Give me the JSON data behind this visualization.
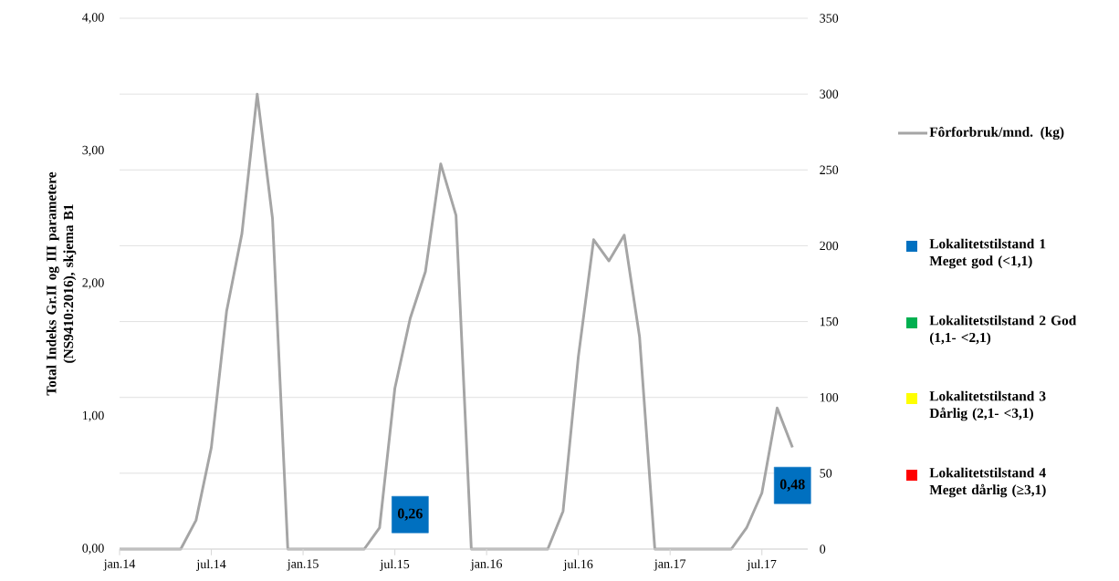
{
  "chart_data": {
    "type": "line",
    "ylabel": "Total Indeks Gr.II og III parametere (NS9410:2016), skjema B1",
    "x": [
      "2014-01",
      "2014-02",
      "2014-03",
      "2014-04",
      "2014-05",
      "2014-06",
      "2014-07",
      "2014-08",
      "2014-09",
      "2014-10",
      "2014-11",
      "2014-12",
      "2015-01",
      "2015-02",
      "2015-03",
      "2015-04",
      "2015-05",
      "2015-06",
      "2015-07",
      "2015-08",
      "2015-09",
      "2015-10",
      "2015-11",
      "2015-12",
      "2016-01",
      "2016-02",
      "2016-03",
      "2016-04",
      "2016-05",
      "2016-06",
      "2016-07",
      "2016-08",
      "2016-09",
      "2016-10",
      "2016-11",
      "2016-12",
      "2017-01",
      "2017-02",
      "2017-03",
      "2017-04",
      "2017-05",
      "2017-06",
      "2017-07",
      "2017-08",
      "2017-09"
    ],
    "series": [
      {
        "name": "Fôrforbruk/mnd. (kg)",
        "axis": "y2",
        "color": "#a5a5a5",
        "values": [
          0,
          0,
          0,
          0,
          0,
          19,
          67,
          157,
          208,
          300,
          218,
          0,
          0,
          0,
          0,
          0,
          0,
          14,
          106,
          152,
          183,
          254,
          220,
          0,
          0,
          0,
          0,
          0,
          0,
          25,
          127,
          204,
          190,
          207,
          140,
          0,
          0,
          0,
          0,
          0,
          0,
          14,
          37,
          93,
          67
        ]
      },
      {
        "name": "Lokalitetstilstand 1 Meget god (<1,1)",
        "type": "scatter",
        "marker": "square",
        "color": "#0070c0",
        "x": [
          "2015-08",
          "2017-09"
        ],
        "values": [
          0.26,
          0.48
        ],
        "value_labels": [
          "0,26",
          "0,48"
        ]
      },
      {
        "name": "Lokalitetstilstand 2 God (1,1- <2,1)",
        "type": "scatter",
        "marker": "square",
        "color": "#00b050",
        "values": [
          null,
          null,
          null,
          null,
          null,
          null,
          null,
          null,
          null,
          null,
          null,
          null,
          null,
          null,
          null,
          null,
          null,
          null,
          null,
          null,
          null,
          null,
          null,
          null,
          null,
          null,
          null,
          null,
          null,
          null,
          null,
          null,
          null,
          null,
          null,
          null,
          null,
          null,
          null,
          null,
          null,
          null,
          null,
          null,
          null
        ]
      },
      {
        "name": "Lokalitetstilstand 3 Dårlig (2,1- <3,1)",
        "type": "scatter",
        "marker": "square",
        "color": "#ffff00",
        "values": [
          null,
          null,
          null,
          null,
          null,
          null,
          null,
          null,
          null,
          null,
          null,
          null,
          null,
          null,
          null,
          null,
          null,
          null,
          null,
          null,
          null,
          null,
          null,
          null,
          null,
          null,
          null,
          null,
          null,
          null,
          null,
          null,
          null,
          null,
          null,
          null,
          null,
          null,
          null,
          null,
          null,
          null,
          null,
          null,
          null
        ]
      },
      {
        "name": "Lokalitetstilstand 4 Meget dårlig (≥3,1)",
        "type": "scatter",
        "marker": "square",
        "color": "#ff0000",
        "values": [
          null,
          null,
          null,
          null,
          null,
          null,
          null,
          null,
          null,
          null,
          null,
          null,
          null,
          null,
          null,
          null,
          null,
          null,
          null,
          null,
          null,
          null,
          null,
          null,
          null,
          null,
          null,
          null,
          null,
          null,
          null,
          null,
          null,
          null,
          null,
          null,
          null,
          null,
          null,
          null,
          null,
          null,
          null,
          null,
          null
        ]
      }
    ],
    "xlim": [
      "2014-01",
      "2017-10"
    ],
    "xticks": [
      {
        "value": "2014-01",
        "label": "jan.14"
      },
      {
        "value": "2014-07",
        "label": "jul.14"
      },
      {
        "value": "2015-01",
        "label": "jan.15"
      },
      {
        "value": "2015-07",
        "label": "jul.15"
      },
      {
        "value": "2016-01",
        "label": "jan.16"
      },
      {
        "value": "2016-07",
        "label": "jul.16"
      },
      {
        "value": "2017-01",
        "label": "jan.17"
      },
      {
        "value": "2017-07",
        "label": "jul.17"
      }
    ],
    "ylim": [
      0,
      4
    ],
    "yticks": [
      {
        "value": 0,
        "label": "0,00"
      },
      {
        "value": 1,
        "label": "1,00"
      },
      {
        "value": 2,
        "label": "2,00"
      },
      {
        "value": 3,
        "label": "3,00"
      },
      {
        "value": 4,
        "label": "4,00"
      }
    ],
    "y2lim": [
      0,
      350
    ],
    "y2ticks": [
      0,
      50,
      100,
      150,
      200,
      250,
      300,
      350
    ],
    "grid": "y2",
    "legend": "right"
  }
}
